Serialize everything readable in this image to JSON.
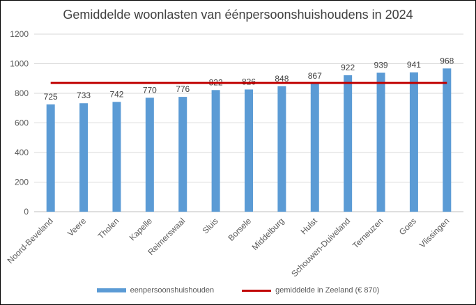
{
  "chart_data": {
    "type": "bar",
    "title": "Gemiddelde woonlasten van  éénpersoonshuishoudens in 2024",
    "categories": [
      "Noord-Beveland",
      "Veere",
      "Tholen",
      "Kapelle",
      "Reimerswaal",
      "Sluis",
      "Borsele",
      "Middelburg",
      "Hulst",
      "Schouwen-Duiveland",
      "Terneuzen",
      "Goes",
      "Vlissingen"
    ],
    "series": [
      {
        "name": "eenpersoonshuishouden",
        "type": "bar",
        "color": "#5B9BD5",
        "values": [
          725,
          733,
          742,
          770,
          776,
          822,
          826,
          848,
          867,
          922,
          939,
          941,
          968
        ]
      },
      {
        "name": "gemiddelde in Zeeland (€ 870)",
        "type": "line",
        "color": "#C00000",
        "value": 870
      }
    ],
    "yticks": [
      "0",
      "200",
      "400",
      "600",
      "800",
      "1000",
      "1200"
    ],
    "ylim": [
      0,
      1200
    ],
    "grid": true,
    "legend_position": "bottom"
  }
}
